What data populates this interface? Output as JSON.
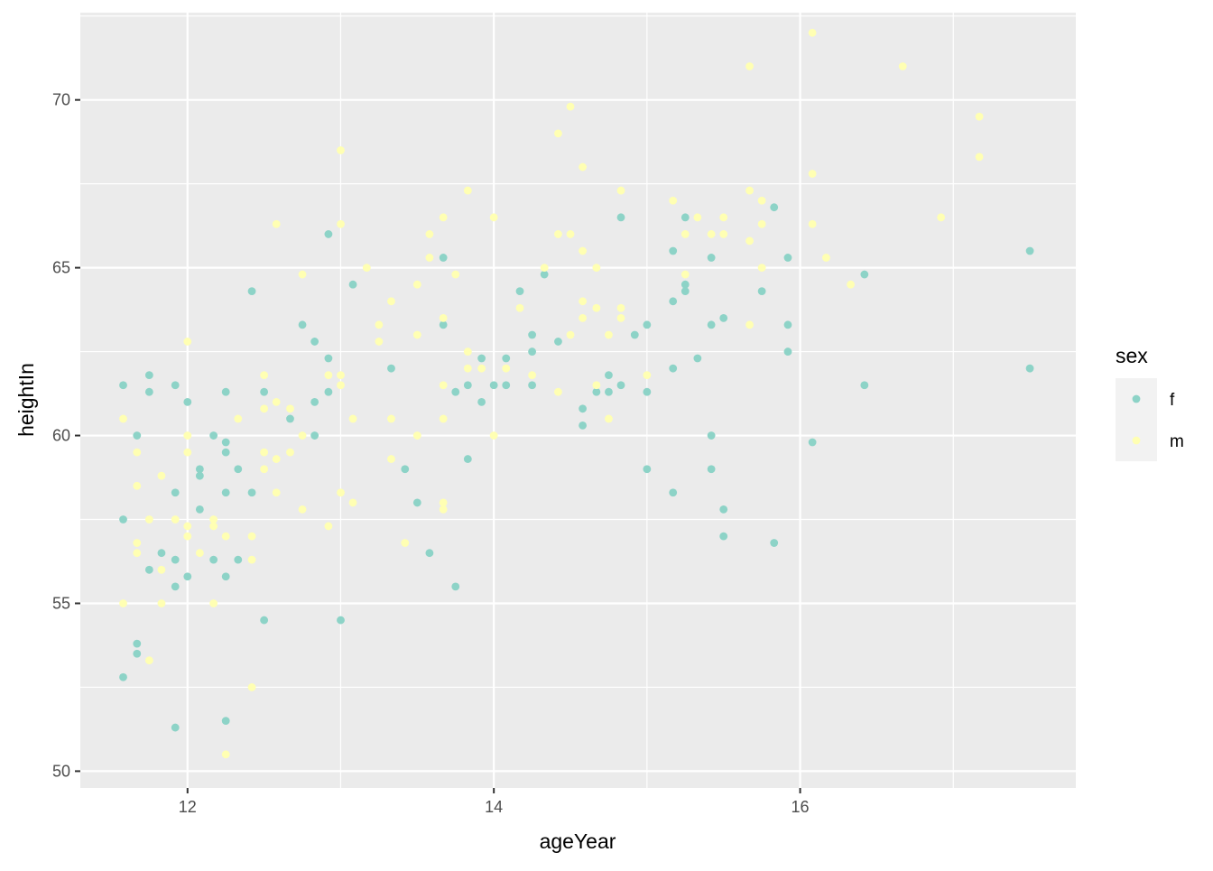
{
  "chart_data": {
    "type": "scatter",
    "xlabel": "ageYear",
    "ylabel": "heightIn",
    "xlim": [
      11.3,
      17.8
    ],
    "ylim": [
      49.5,
      72.6
    ],
    "x_ticks": [
      12,
      14,
      16
    ],
    "x_tick_labels": [
      "12",
      "14",
      "16"
    ],
    "y_ticks": [
      50,
      55,
      60,
      65,
      70
    ],
    "y_tick_labels": [
      "50",
      "55",
      "60",
      "65",
      "70"
    ],
    "grid": true,
    "legend": {
      "title": "sex",
      "position": "right"
    },
    "series": [
      {
        "name": "f",
        "color": "#8dd3c7",
        "points": [
          [
            11.58,
            61.5
          ],
          [
            11.58,
            57.5
          ],
          [
            11.58,
            52.8
          ],
          [
            11.67,
            60.0
          ],
          [
            11.67,
            53.8
          ],
          [
            11.67,
            53.5
          ],
          [
            11.75,
            61.8
          ],
          [
            11.75,
            61.3
          ],
          [
            11.75,
            56.0
          ],
          [
            11.83,
            56.5
          ],
          [
            11.92,
            61.5
          ],
          [
            11.92,
            58.3
          ],
          [
            11.92,
            56.3
          ],
          [
            11.92,
            55.5
          ],
          [
            11.92,
            51.3
          ],
          [
            12.0,
            61.0
          ],
          [
            12.0,
            55.8
          ],
          [
            12.08,
            59.0
          ],
          [
            12.08,
            58.8
          ],
          [
            12.08,
            57.8
          ],
          [
            12.17,
            60.0
          ],
          [
            12.17,
            56.3
          ],
          [
            12.25,
            61.3
          ],
          [
            12.25,
            59.8
          ],
          [
            12.25,
            59.5
          ],
          [
            12.25,
            58.3
          ],
          [
            12.25,
            55.8
          ],
          [
            12.25,
            51.5
          ],
          [
            12.33,
            59.0
          ],
          [
            12.33,
            56.3
          ],
          [
            12.42,
            64.3
          ],
          [
            12.42,
            58.3
          ],
          [
            12.5,
            61.3
          ],
          [
            12.5,
            54.5
          ],
          [
            12.67,
            60.5
          ],
          [
            12.75,
            63.3
          ],
          [
            12.83,
            62.8
          ],
          [
            12.83,
            61.0
          ],
          [
            12.83,
            60.0
          ],
          [
            12.92,
            66.0
          ],
          [
            12.92,
            62.3
          ],
          [
            12.92,
            61.3
          ],
          [
            13.0,
            54.5
          ],
          [
            13.08,
            64.5
          ],
          [
            13.33,
            62.0
          ],
          [
            13.42,
            59.0
          ],
          [
            13.5,
            58.0
          ],
          [
            13.58,
            56.5
          ],
          [
            13.67,
            65.3
          ],
          [
            13.67,
            63.3
          ],
          [
            13.75,
            61.3
          ],
          [
            13.75,
            55.5
          ],
          [
            13.83,
            61.5
          ],
          [
            13.83,
            59.3
          ],
          [
            13.92,
            62.3
          ],
          [
            13.92,
            61.0
          ],
          [
            14.0,
            61.5
          ],
          [
            14.08,
            62.3
          ],
          [
            14.08,
            61.5
          ],
          [
            14.17,
            64.3
          ],
          [
            14.25,
            63.0
          ],
          [
            14.25,
            62.5
          ],
          [
            14.25,
            61.5
          ],
          [
            14.33,
            64.8
          ],
          [
            14.42,
            62.8
          ],
          [
            14.58,
            60.8
          ],
          [
            14.58,
            60.3
          ],
          [
            14.67,
            61.3
          ],
          [
            14.75,
            61.8
          ],
          [
            14.75,
            61.3
          ],
          [
            14.83,
            66.5
          ],
          [
            14.83,
            61.5
          ],
          [
            14.92,
            63.0
          ],
          [
            15.0,
            63.3
          ],
          [
            15.0,
            61.3
          ],
          [
            15.0,
            59.0
          ],
          [
            15.17,
            65.5
          ],
          [
            15.17,
            64.0
          ],
          [
            15.17,
            62.0
          ],
          [
            15.17,
            58.3
          ],
          [
            15.25,
            66.5
          ],
          [
            15.25,
            64.5
          ],
          [
            15.25,
            64.3
          ],
          [
            15.33,
            62.3
          ],
          [
            15.42,
            65.3
          ],
          [
            15.42,
            63.3
          ],
          [
            15.42,
            60.0
          ],
          [
            15.42,
            59.0
          ],
          [
            15.5,
            63.5
          ],
          [
            15.5,
            57.8
          ],
          [
            15.5,
            57.0
          ],
          [
            15.75,
            64.3
          ],
          [
            15.83,
            66.8
          ],
          [
            15.83,
            56.8
          ],
          [
            15.92,
            65.3
          ],
          [
            15.92,
            63.3
          ],
          [
            15.92,
            62.5
          ],
          [
            16.08,
            59.8
          ],
          [
            16.42,
            64.8
          ],
          [
            16.42,
            61.5
          ],
          [
            17.5,
            65.5
          ],
          [
            17.5,
            62.0
          ]
        ]
      },
      {
        "name": "m",
        "color": "#ffffb3",
        "points": [
          [
            11.58,
            60.5
          ],
          [
            11.58,
            55.0
          ],
          [
            11.67,
            59.5
          ],
          [
            11.67,
            58.5
          ],
          [
            11.67,
            56.8
          ],
          [
            11.67,
            56.5
          ],
          [
            11.75,
            57.5
          ],
          [
            11.75,
            53.3
          ],
          [
            11.83,
            58.8
          ],
          [
            11.83,
            56.0
          ],
          [
            11.83,
            55.0
          ],
          [
            11.92,
            57.5
          ],
          [
            12.0,
            62.8
          ],
          [
            12.0,
            60.0
          ],
          [
            12.0,
            59.5
          ],
          [
            12.0,
            57.3
          ],
          [
            12.0,
            57.0
          ],
          [
            12.08,
            56.5
          ],
          [
            12.17,
            57.5
          ],
          [
            12.17,
            57.3
          ],
          [
            12.17,
            55.0
          ],
          [
            12.25,
            57.0
          ],
          [
            12.25,
            50.5
          ],
          [
            12.33,
            60.5
          ],
          [
            12.42,
            57.0
          ],
          [
            12.42,
            56.3
          ],
          [
            12.42,
            52.5
          ],
          [
            12.5,
            61.8
          ],
          [
            12.5,
            60.8
          ],
          [
            12.5,
            59.5
          ],
          [
            12.5,
            59.0
          ],
          [
            12.58,
            66.3
          ],
          [
            12.58,
            61.0
          ],
          [
            12.58,
            59.3
          ],
          [
            12.58,
            58.3
          ],
          [
            12.67,
            60.8
          ],
          [
            12.67,
            59.5
          ],
          [
            12.75,
            64.8
          ],
          [
            12.75,
            60.0
          ],
          [
            12.75,
            57.8
          ],
          [
            12.92,
            61.8
          ],
          [
            12.92,
            57.3
          ],
          [
            13.0,
            68.5
          ],
          [
            13.0,
            66.3
          ],
          [
            13.0,
            61.8
          ],
          [
            13.0,
            61.5
          ],
          [
            13.0,
            58.3
          ],
          [
            13.08,
            60.5
          ],
          [
            13.08,
            58.0
          ],
          [
            13.17,
            65.0
          ],
          [
            13.25,
            63.3
          ],
          [
            13.25,
            62.8
          ],
          [
            13.33,
            64.0
          ],
          [
            13.33,
            60.5
          ],
          [
            13.33,
            59.3
          ],
          [
            13.42,
            56.8
          ],
          [
            13.5,
            64.5
          ],
          [
            13.5,
            63.0
          ],
          [
            13.5,
            60.0
          ],
          [
            13.58,
            66.0
          ],
          [
            13.58,
            65.3
          ],
          [
            13.67,
            66.5
          ],
          [
            13.67,
            63.5
          ],
          [
            13.67,
            61.5
          ],
          [
            13.67,
            60.5
          ],
          [
            13.67,
            58.0
          ],
          [
            13.67,
            57.8
          ],
          [
            13.75,
            64.8
          ],
          [
            13.83,
            67.3
          ],
          [
            13.83,
            62.5
          ],
          [
            13.83,
            62.0
          ],
          [
            13.92,
            62.0
          ],
          [
            14.0,
            66.5
          ],
          [
            14.0,
            60.0
          ],
          [
            14.08,
            62.0
          ],
          [
            14.17,
            63.8
          ],
          [
            14.25,
            61.8
          ],
          [
            14.33,
            65.0
          ],
          [
            14.42,
            69.0
          ],
          [
            14.42,
            66.0
          ],
          [
            14.42,
            61.3
          ],
          [
            14.5,
            69.8
          ],
          [
            14.5,
            66.0
          ],
          [
            14.5,
            63.0
          ],
          [
            14.58,
            68.0
          ],
          [
            14.58,
            65.5
          ],
          [
            14.58,
            64.0
          ],
          [
            14.58,
            63.5
          ],
          [
            14.67,
            65.0
          ],
          [
            14.67,
            63.8
          ],
          [
            14.67,
            61.5
          ],
          [
            14.75,
            63.0
          ],
          [
            14.75,
            60.5
          ],
          [
            14.83,
            67.3
          ],
          [
            14.83,
            63.8
          ],
          [
            14.83,
            63.5
          ],
          [
            15.0,
            61.8
          ],
          [
            15.17,
            67.0
          ],
          [
            15.25,
            66.0
          ],
          [
            15.25,
            64.8
          ],
          [
            15.33,
            66.5
          ],
          [
            15.42,
            66.0
          ],
          [
            15.5,
            66.5
          ],
          [
            15.5,
            66.0
          ],
          [
            15.67,
            71.0
          ],
          [
            15.67,
            67.3
          ],
          [
            15.67,
            65.8
          ],
          [
            15.67,
            63.3
          ],
          [
            15.75,
            67.0
          ],
          [
            15.75,
            66.3
          ],
          [
            15.75,
            65.0
          ],
          [
            16.08,
            72.0
          ],
          [
            16.08,
            67.8
          ],
          [
            16.08,
            66.3
          ],
          [
            16.17,
            65.3
          ],
          [
            16.33,
            64.5
          ],
          [
            16.67,
            71.0
          ],
          [
            16.92,
            66.5
          ],
          [
            17.17,
            69.5
          ],
          [
            17.17,
            68.3
          ]
        ]
      }
    ]
  }
}
